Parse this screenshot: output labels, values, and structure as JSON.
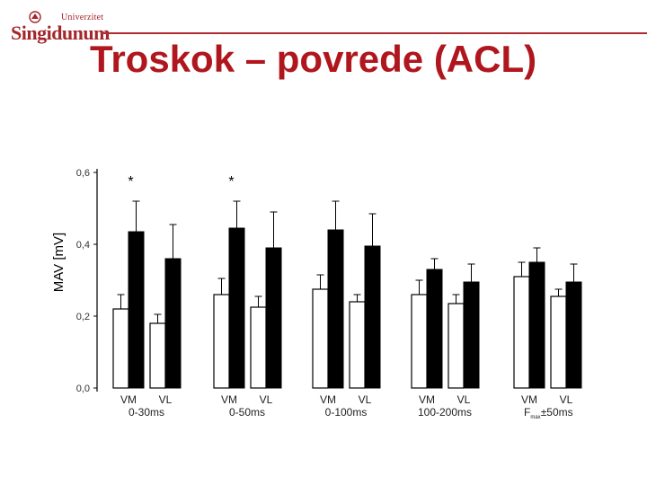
{
  "logo": {
    "top_text": "Univerzitet",
    "name": "Singidunum"
  },
  "page_title": "Troskok – povrede (ACL)",
  "colors": {
    "title": "#b0161d",
    "logo": "#a3262a",
    "bar_open": "#ffffff",
    "bar_filled": "#000000"
  },
  "chart_data": {
    "type": "bar",
    "ylabel": "MAV [mV]",
    "ylim": [
      0,
      0.6
    ],
    "yticks": [
      "0,0",
      "0,2",
      "0,4",
      "0,6"
    ],
    "ytick_values": [
      0,
      0.2,
      0.4,
      0.6
    ],
    "groups": [
      {
        "label": "0-30ms",
        "significance": "*",
        "muscles": [
          {
            "name": "VM",
            "open": 0.22,
            "open_err": 0.04,
            "filled": 0.435,
            "filled_err": 0.085
          },
          {
            "name": "VL",
            "open": 0.18,
            "open_err": 0.025,
            "filled": 0.36,
            "filled_err": 0.095
          }
        ]
      },
      {
        "label": "0-50ms",
        "significance": "*",
        "muscles": [
          {
            "name": "VM",
            "open": 0.26,
            "open_err": 0.045,
            "filled": 0.445,
            "filled_err": 0.075
          },
          {
            "name": "VL",
            "open": 0.225,
            "open_err": 0.03,
            "filled": 0.39,
            "filled_err": 0.1
          }
        ]
      },
      {
        "label": "0-100ms",
        "significance": "",
        "muscles": [
          {
            "name": "VM",
            "open": 0.275,
            "open_err": 0.04,
            "filled": 0.44,
            "filled_err": 0.08
          },
          {
            "name": "VL",
            "open": 0.24,
            "open_err": 0.02,
            "filled": 0.395,
            "filled_err": 0.09
          }
        ]
      },
      {
        "label": "100-200ms",
        "significance": "",
        "muscles": [
          {
            "name": "VM",
            "open": 0.26,
            "open_err": 0.04,
            "filled": 0.33,
            "filled_err": 0.03
          },
          {
            "name": "VL",
            "open": 0.235,
            "open_err": 0.025,
            "filled": 0.295,
            "filled_err": 0.05
          }
        ]
      },
      {
        "label": "F",
        "label_subscript": "max",
        "label_suffix": "±50ms",
        "significance": "",
        "muscles": [
          {
            "name": "VM",
            "open": 0.31,
            "open_err": 0.04,
            "filled": 0.35,
            "filled_err": 0.04
          },
          {
            "name": "VL",
            "open": 0.255,
            "open_err": 0.02,
            "filled": 0.295,
            "filled_err": 0.05
          }
        ]
      }
    ]
  }
}
